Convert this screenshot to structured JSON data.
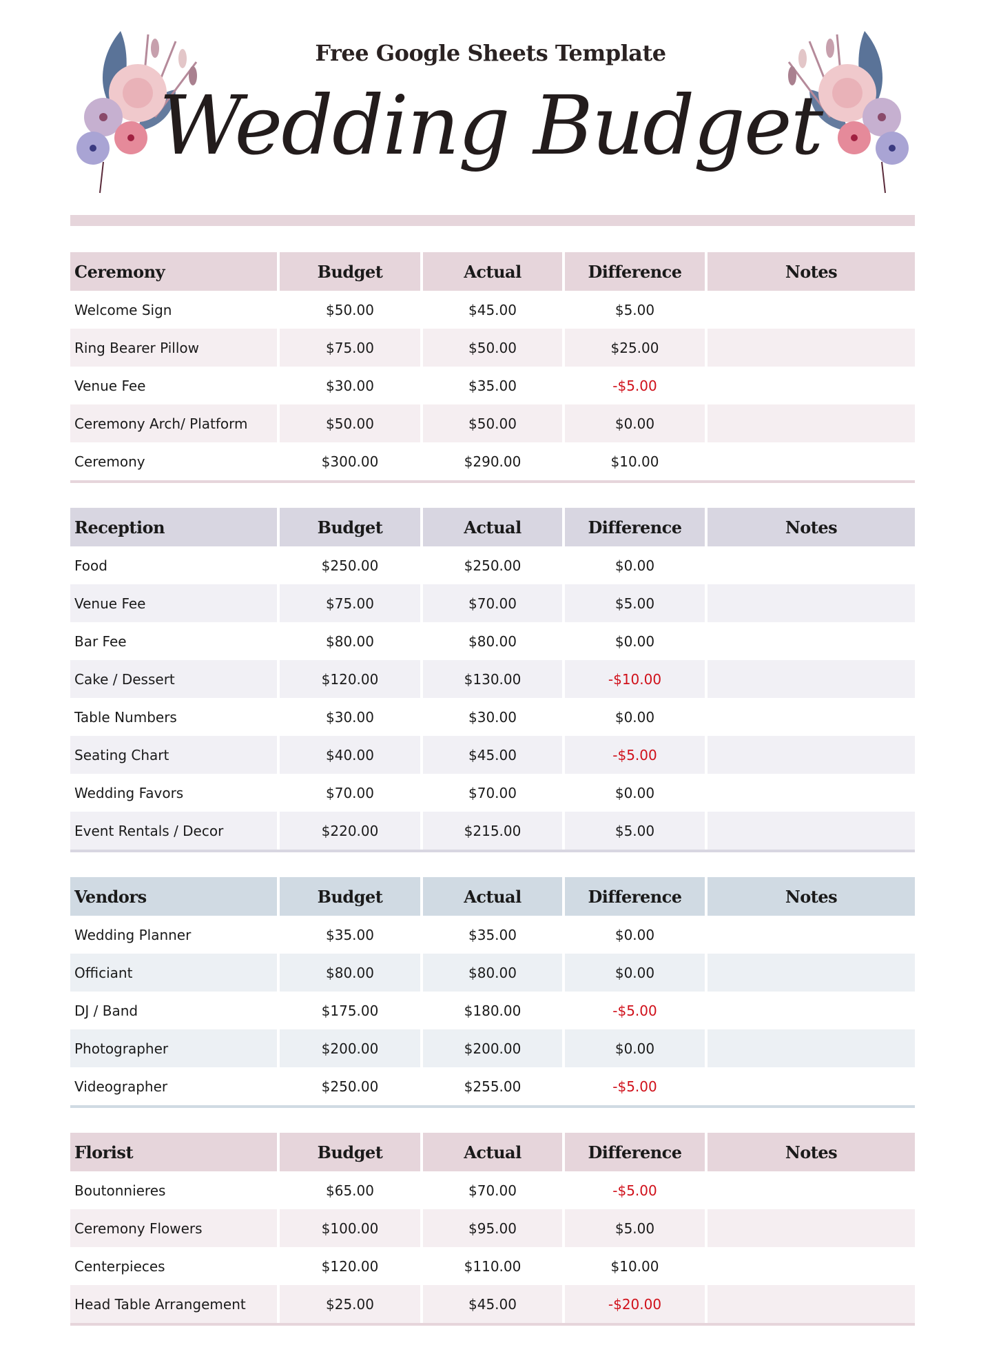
{
  "header": {
    "subtitle": "Free Google Sheets Template",
    "title": "Wedding Budget"
  },
  "columns": [
    "Budget",
    "Actual",
    "Difference",
    "Notes"
  ],
  "colors": {
    "pink_header": "#e6d5db",
    "pink_alt": "#f5eef1",
    "lavender_header": "#d8d6e1",
    "lavender_alt": "#f1f0f5",
    "blue_header": "#d0dae3",
    "blue_alt": "#ecf0f4",
    "negative": "#d0101a"
  },
  "sections": [
    {
      "name": "Ceremony",
      "theme": "pink",
      "rows": [
        {
          "item": "Welcome Sign",
          "budget": "$50.00",
          "actual": "$45.00",
          "difference": "$5.00",
          "notes": ""
        },
        {
          "item": "Ring Bearer Pillow",
          "budget": "$75.00",
          "actual": "$50.00",
          "difference": "$25.00",
          "notes": ""
        },
        {
          "item": "Venue Fee",
          "budget": "$30.00",
          "actual": "$35.00",
          "difference": "-$5.00",
          "notes": ""
        },
        {
          "item": "Ceremony Arch/ Platform",
          "budget": "$50.00",
          "actual": "$50.00",
          "difference": "$0.00",
          "notes": ""
        },
        {
          "item": "Ceremony",
          "budget": "$300.00",
          "actual": "$290.00",
          "difference": "$10.00",
          "notes": ""
        }
      ]
    },
    {
      "name": "Reception",
      "theme": "lavender",
      "rows": [
        {
          "item": "Food",
          "budget": "$250.00",
          "actual": "$250.00",
          "difference": "$0.00",
          "notes": ""
        },
        {
          "item": "Venue Fee",
          "budget": "$75.00",
          "actual": "$70.00",
          "difference": "$5.00",
          "notes": ""
        },
        {
          "item": "Bar Fee",
          "budget": "$80.00",
          "actual": "$80.00",
          "difference": "$0.00",
          "notes": ""
        },
        {
          "item": "Cake / Dessert",
          "budget": "$120.00",
          "actual": "$130.00",
          "difference": "-$10.00",
          "notes": ""
        },
        {
          "item": "Table Numbers",
          "budget": "$30.00",
          "actual": "$30.00",
          "difference": "$0.00",
          "notes": ""
        },
        {
          "item": "Seating Chart",
          "budget": "$40.00",
          "actual": "$45.00",
          "difference": "-$5.00",
          "notes": ""
        },
        {
          "item": "Wedding Favors",
          "budget": "$70.00",
          "actual": "$70.00",
          "difference": "$0.00",
          "notes": ""
        },
        {
          "item": "Event Rentals / Decor",
          "budget": "$220.00",
          "actual": "$215.00",
          "difference": "$5.00",
          "notes": ""
        }
      ]
    },
    {
      "name": "Vendors",
      "theme": "blue",
      "rows": [
        {
          "item": "Wedding Planner",
          "budget": "$35.00",
          "actual": "$35.00",
          "difference": "$0.00",
          "notes": ""
        },
        {
          "item": "Officiant",
          "budget": "$80.00",
          "actual": "$80.00",
          "difference": "$0.00",
          "notes": ""
        },
        {
          "item": "DJ / Band",
          "budget": "$175.00",
          "actual": "$180.00",
          "difference": "-$5.00",
          "notes": ""
        },
        {
          "item": "Photographer",
          "budget": "$200.00",
          "actual": "$200.00",
          "difference": "$0.00",
          "notes": ""
        },
        {
          "item": "Videographer",
          "budget": "$250.00",
          "actual": "$255.00",
          "difference": "-$5.00",
          "notes": ""
        }
      ]
    },
    {
      "name": "Florist",
      "theme": "pink",
      "rows": [
        {
          "item": "Boutonnieres",
          "budget": "$65.00",
          "actual": "$70.00",
          "difference": "-$5.00",
          "notes": ""
        },
        {
          "item": "Ceremony Flowers",
          "budget": "$100.00",
          "actual": "$95.00",
          "difference": "$5.00",
          "notes": ""
        },
        {
          "item": "Centerpieces",
          "budget": "$120.00",
          "actual": "$110.00",
          "difference": "$10.00",
          "notes": ""
        },
        {
          "item": "Head Table Arrangement",
          "budget": "$25.00",
          "actual": "$45.00",
          "difference": "-$20.00",
          "notes": ""
        }
      ]
    }
  ]
}
